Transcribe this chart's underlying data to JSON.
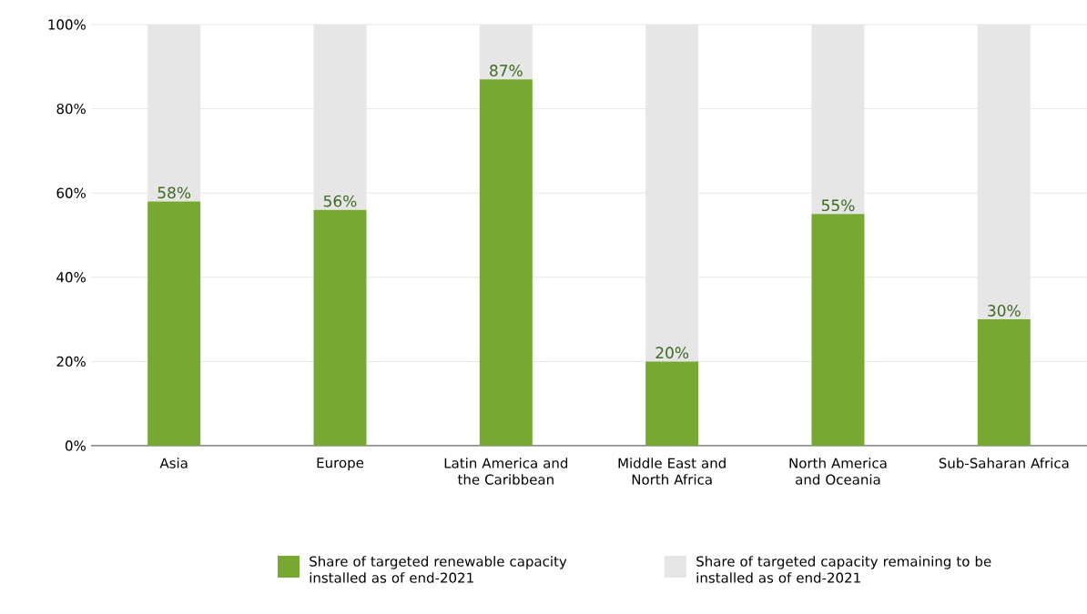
{
  "chart_data": {
    "type": "bar",
    "stacked": true,
    "categories": [
      "Asia",
      "Europe",
      "Latin America and the Caribbean",
      "Middle East and North Africa",
      "North America and Oceania",
      "Sub-Saharan Africa"
    ],
    "series": [
      {
        "name": "Share of targeted renewable capacity installed as of end-2021",
        "color": "#76a832",
        "values": [
          58,
          56,
          87,
          20,
          55,
          30
        ],
        "value_labels": [
          "58%",
          "56%",
          "87%",
          "20%",
          "55%",
          "30%"
        ]
      },
      {
        "name": "Share of targeted capacity remaining to be installed as of end-2021",
        "color": "#e6e6e6",
        "values": [
          42,
          44,
          13,
          80,
          45,
          70
        ]
      }
    ],
    "ylim": [
      0,
      100
    ],
    "yticks": [
      {
        "value": 0,
        "label": "0%"
      },
      {
        "value": 20,
        "label": "20%"
      },
      {
        "value": 40,
        "label": "40%"
      },
      {
        "value": 60,
        "label": "60%"
      },
      {
        "value": 80,
        "label": "80%"
      },
      {
        "value": 100,
        "label": "100%"
      }
    ],
    "grid": "y",
    "legend": "bottom"
  }
}
